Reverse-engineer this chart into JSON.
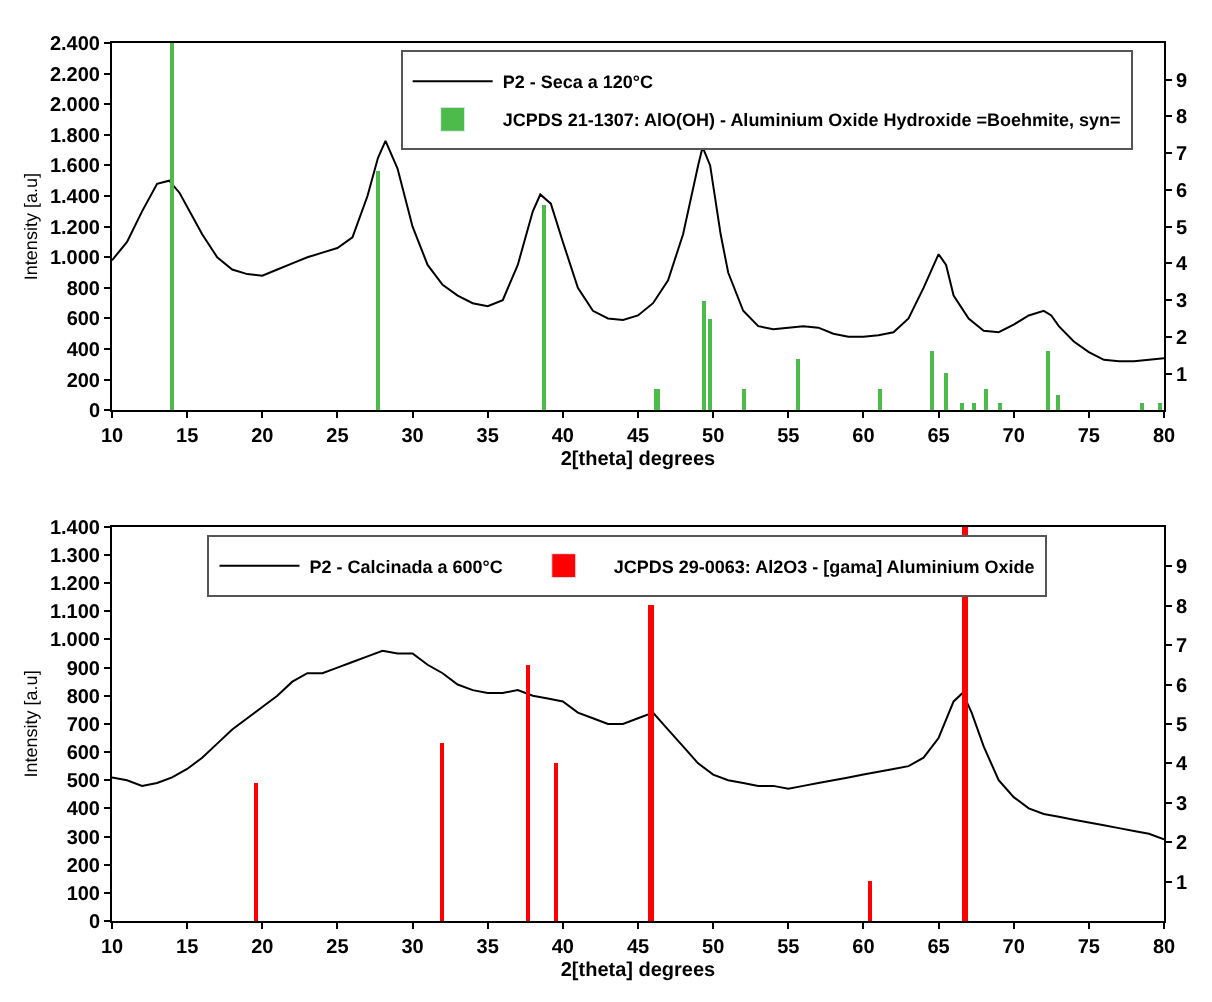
{
  "chart_data": [
    {
      "type": "line",
      "xlabel": "2[theta] degrees",
      "ylabel": "Intensity [a.u]",
      "legend": "top right",
      "xlim": [
        10,
        80
      ],
      "xticks": [
        10,
        15,
        20,
        25,
        30,
        35,
        40,
        45,
        50,
        55,
        60,
        65,
        70,
        75,
        80
      ],
      "ylim": [
        0,
        2400
      ],
      "yticks": [
        0,
        200,
        400,
        600,
        800,
        {
          "value": 1000,
          "label": "1.000"
        },
        {
          "value": 1200,
          "label": "1.200"
        },
        {
          "value": 1400,
          "label": "1.400"
        },
        {
          "value": 1600,
          "label": "1.600"
        },
        {
          "value": 1800,
          "label": "1.800"
        },
        {
          "value": 2000,
          "label": "2.000"
        },
        {
          "value": 2200,
          "label": "2.200"
        },
        {
          "value": 2400,
          "label": "2.400"
        }
      ],
      "y2lim": [
        0,
        10
      ],
      "y2ticks": [
        1,
        2,
        3,
        4,
        5,
        6,
        7,
        8,
        9
      ],
      "series": [
        {
          "name": "P2 - Seca a 120°C",
          "color": "#000000",
          "x": [
            10,
            11,
            12,
            13,
            13.8,
            14.5,
            16,
            17,
            18,
            19,
            20,
            21,
            22,
            23,
            24,
            25,
            26,
            27,
            27.7,
            28.2,
            29,
            30,
            31,
            32,
            33,
            34,
            35,
            36,
            37,
            38,
            38.5,
            39.2,
            40,
            41,
            42,
            43,
            44,
            45,
            46,
            47,
            48,
            49,
            49.3,
            49.8,
            50.5,
            51,
            52,
            53,
            54,
            55,
            56,
            57,
            58,
            59,
            60,
            61,
            62,
            63,
            64,
            65,
            65.5,
            66,
            67,
            68,
            69,
            70,
            71,
            72,
            72.5,
            73,
            74,
            75,
            76,
            77,
            78,
            79,
            80
          ],
          "values": [
            980,
            1100,
            1300,
            1480,
            1500,
            1420,
            1150,
            1000,
            920,
            890,
            880,
            920,
            960,
            1000,
            1030,
            1060,
            1130,
            1400,
            1650,
            1760,
            1580,
            1200,
            950,
            820,
            750,
            700,
            680,
            720,
            950,
            1300,
            1410,
            1350,
            1100,
            800,
            650,
            600,
            590,
            620,
            700,
            850,
            1150,
            1600,
            1720,
            1600,
            1150,
            900,
            650,
            550,
            530,
            540,
            550,
            540,
            500,
            480,
            480,
            490,
            510,
            600,
            800,
            1020,
            950,
            750,
            600,
            520,
            510,
            560,
            620,
            650,
            620,
            550,
            450,
            380,
            330,
            320,
            320,
            330,
            340
          ]
        },
        {
          "name": "JCPDS 21-1307: AlO(OH) - Aluminium Oxide Hydroxide =Boehmite, syn=",
          "type": "bar",
          "axis": "y2",
          "color": "#4cbb4c",
          "x": [
            14,
            27.7,
            38.8,
            46.3,
            49.4,
            49.8,
            52.1,
            55.7,
            61.1,
            64.6,
            65.5,
            66.6,
            67.4,
            68.2,
            69.1,
            72.3,
            73.0,
            78.6,
            79.8
          ],
          "values": [
            10,
            6.5,
            5.6,
            0.6,
            3.0,
            2.5,
            0.6,
            1.4,
            0.6,
            1.6,
            1.0,
            0.2,
            0.2,
            0.6,
            0.2,
            1.6,
            0.4,
            0.2,
            0.2
          ]
        }
      ]
    },
    {
      "type": "line",
      "xlabel": "2[theta] degrees",
      "ylabel": "Intensity [a.u]",
      "legend": "top",
      "xlim": [
        10,
        80
      ],
      "xticks": [
        10,
        15,
        20,
        25,
        30,
        35,
        40,
        45,
        50,
        55,
        60,
        65,
        70,
        75,
        80
      ],
      "ylim": [
        0,
        1400
      ],
      "yticks": [
        0,
        100,
        200,
        300,
        400,
        500,
        600,
        700,
        800,
        900,
        {
          "value": 1000,
          "label": "1.000"
        },
        {
          "value": 1100,
          "label": "1.100"
        },
        {
          "value": 1200,
          "label": "1.200"
        },
        {
          "value": 1300,
          "label": "1.300"
        },
        {
          "value": 1400,
          "label": "1.400"
        }
      ],
      "y2lim": [
        0,
        10
      ],
      "y2ticks": [
        1,
        2,
        3,
        4,
        5,
        6,
        7,
        8,
        9
      ],
      "series": [
        {
          "name": "P2 - Calcinada a 600°C",
          "color": "#000000",
          "x": [
            10,
            11,
            12,
            13,
            14,
            15,
            16,
            17,
            18,
            19,
            20,
            21,
            22,
            23,
            24,
            25,
            26,
            27,
            28,
            29,
            30,
            31,
            32,
            33,
            34,
            35,
            36,
            37,
            38,
            39,
            40,
            41,
            42,
            43,
            44,
            45,
            46,
            47,
            48,
            49,
            50,
            51,
            52,
            53,
            54,
            55,
            56,
            57,
            58,
            59,
            60,
            61,
            62,
            63,
            64,
            65,
            66,
            66.6,
            67.2,
            68,
            69,
            70,
            71,
            72,
            73,
            74,
            75,
            76,
            77,
            78,
            79,
            80
          ],
          "values": [
            510,
            500,
            480,
            490,
            510,
            540,
            580,
            630,
            680,
            720,
            760,
            800,
            850,
            880,
            880,
            900,
            920,
            940,
            960,
            950,
            950,
            910,
            880,
            840,
            820,
            810,
            810,
            820,
            800,
            790,
            780,
            740,
            720,
            700,
            700,
            720,
            740,
            680,
            620,
            560,
            520,
            500,
            490,
            480,
            480,
            470,
            480,
            490,
            500,
            510,
            520,
            530,
            540,
            550,
            580,
            650,
            780,
            810,
            740,
            620,
            500,
            440,
            400,
            380,
            370,
            360,
            350,
            340,
            330,
            320,
            310,
            290
          ]
        },
        {
          "name": "JCPDS 29-0063: Al2O3 - [gama] Aluminium Oxide",
          "type": "bar",
          "axis": "y2",
          "color": "#ff0000",
          "x": [
            19.6,
            32.0,
            37.7,
            39.6,
            45.9,
            60.5,
            66.8
          ],
          "values": [
            3.5,
            4.5,
            6.5,
            4.0,
            8.0,
            1.0,
            10
          ]
        }
      ]
    }
  ]
}
